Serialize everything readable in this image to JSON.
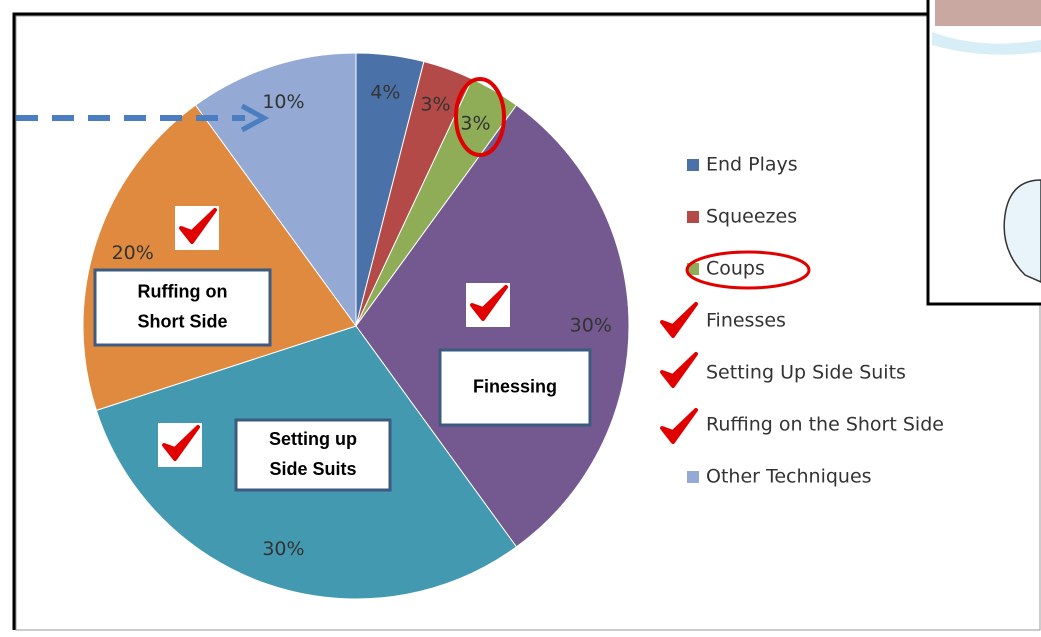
{
  "chart_data": {
    "type": "pie",
    "categories": [
      "End Plays",
      "Squeezes",
      "Coups",
      "Finesses",
      "Setting Up Side Suits",
      "Ruffing on the Short Side",
      "Other Techniques"
    ],
    "values": [
      4,
      3,
      3,
      30,
      30,
      20,
      10
    ],
    "value_labels": [
      "4%",
      "3%",
      "3%",
      "30%",
      "30%",
      "20%",
      "10%"
    ],
    "colors": [
      "#4a72a8",
      "#b44a47",
      "#8fac56",
      "#73598f",
      "#4299b0",
      "#e08a3f",
      "#94aad4"
    ],
    "legend": "right",
    "annotations": [
      [
        "Ruffing on",
        "Short Side"
      ],
      [
        "Finessing"
      ],
      [
        "Setting up",
        "Side Suits"
      ]
    ]
  }
}
